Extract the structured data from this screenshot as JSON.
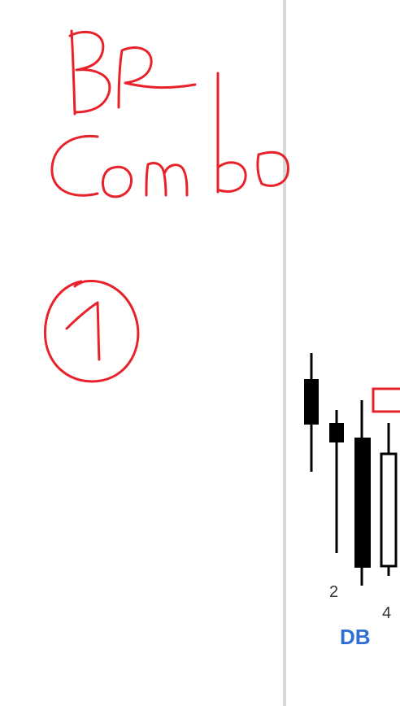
{
  "handwriting": {
    "line1": "BR",
    "line2": "Combo",
    "circled_number": "1",
    "ink_color": "#e8222a"
  },
  "chart": {
    "bar_labels": [
      "2",
      "4"
    ],
    "pattern_label": "DB",
    "pattern_label_color": "#2e6fd6",
    "candle_color": "#000000",
    "marker_color": "#e8222a"
  }
}
